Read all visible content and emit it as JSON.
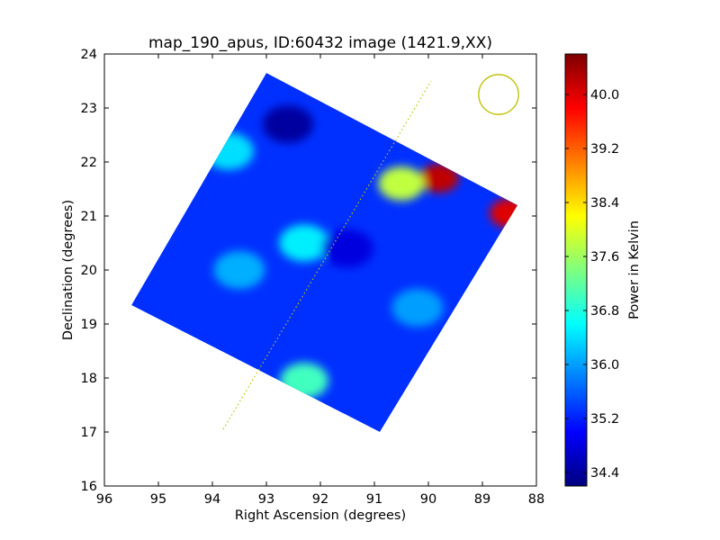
{
  "chart_data": {
    "type": "heatmap",
    "title": "map_190_apus, ID:60432 image (1421.9,XX)",
    "xlabel": "Right Ascension (degrees)",
    "ylabel": "Declination (degrees)",
    "xlim": [
      96,
      88
    ],
    "ylim": [
      16,
      24
    ],
    "xticks": [
      "96",
      "95",
      "94",
      "93",
      "92",
      "91",
      "90",
      "89",
      "88"
    ],
    "yticks": [
      "16",
      "17",
      "18",
      "19",
      "20",
      "21",
      "22",
      "23",
      "24"
    ],
    "colorbar": {
      "label": "Power in Kelvin",
      "min": 34.2,
      "max": 40.6,
      "ticks": [
        "34.4",
        "35.2",
        "36.0",
        "36.8",
        "37.6",
        "38.4",
        "39.2",
        "40.0"
      ],
      "colormap": [
        "#00007f",
        "#0000ff",
        "#007fff",
        "#00ffff",
        "#7fff7f",
        "#ffff00",
        "#ff7f00",
        "#ff0000",
        "#7f0000"
      ]
    },
    "map_corners": [
      [
        93.0,
        23.65
      ],
      [
        88.35,
        21.2
      ],
      [
        90.9,
        17.0
      ],
      [
        95.5,
        19.35
      ]
    ],
    "background_level": 35.3,
    "features": [
      {
        "ra": 89.8,
        "dec": 21.7,
        "value": 40.2
      },
      {
        "ra": 88.5,
        "dec": 21.05,
        "value": 40.0
      },
      {
        "ra": 90.5,
        "dec": 21.6,
        "value": 37.8
      },
      {
        "ra": 92.3,
        "dec": 17.95,
        "value": 37.0
      },
      {
        "ra": 93.7,
        "dec": 22.2,
        "value": 36.4
      },
      {
        "ra": 92.3,
        "dec": 20.5,
        "value": 36.5
      },
      {
        "ra": 93.5,
        "dec": 20.0,
        "value": 36.1
      },
      {
        "ra": 90.2,
        "dec": 19.3,
        "value": 36.0
      },
      {
        "ra": 92.6,
        "dec": 22.7,
        "value": 34.4
      },
      {
        "ra": 91.5,
        "dec": 20.4,
        "value": 34.8
      }
    ],
    "dotted_line": [
      [
        93.8,
        17.05
      ],
      [
        89.95,
        23.5
      ]
    ],
    "beam_circle": {
      "ra": 88.7,
      "dec": 23.25,
      "radius_deg": 0.37
    },
    "overlay_color": "#bfbf00"
  }
}
